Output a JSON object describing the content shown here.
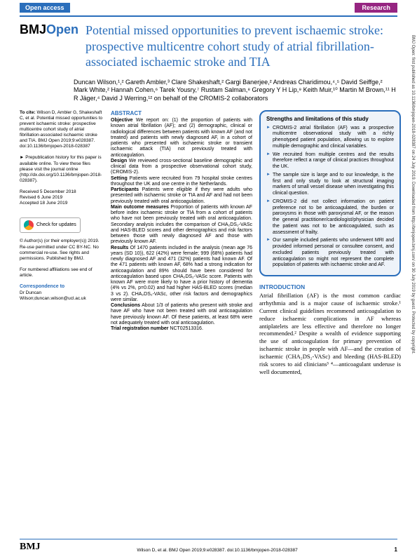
{
  "header": {
    "open_access": "Open access",
    "research": "Research"
  },
  "journal": {
    "name": "BMJ",
    "suffix": "Open"
  },
  "title": "Potential missed opportunities to prevent ischaemic stroke: prospective multicentre cohort study of atrial fibrillation-associated ischaemic stroke and TIA",
  "authors": "Duncan Wilson,¹,² Gareth Ambler,³ Clare Shakeshaft,² Gargi Banerjee,² Andreas Charidimou,⁴,⁵ David Seiffge,² Mark White,² Hannah Cohen,⁶ Tarek Yousry,⁷ Rustam Salman,⁸ Gregory Y H Lip,⁹ Keith Muir,¹⁰ Martin M Brown,¹¹ H R Jäger,⁴ David J Werring,¹² on behalf of the CROMIS-2 collaborators",
  "left": {
    "cite_label": "To cite:",
    "cite_text": " Wilson D, Ambler G, Shakeshaft C, et al. Potential missed opportunities to prevent ischaemic stroke: prospective multicentre cohort study of atrial fibrillation-associated ischaemic stroke and TIA. BMJ Open 2019;9:e028387. doi:10.1136/bmjopen-2018-028387",
    "prepub": "► Prepublication history for this paper is available online. To view these files please visit the journal online (http://dx.doi.org/10.1136/bmjopen-2018-028387).",
    "received": "Received 5 December 2018",
    "revised": "Revised 6 June 2019",
    "accepted": "Accepted 18 June 2019",
    "check": "Check for updates",
    "copyright": "© Author(s) (or their employer(s)) 2019. Re-use permitted under CC BY-NC. No commercial re-use. See rights and permissions. Published by BMJ.",
    "affil": "For numbered affiliations see end of article.",
    "corr_h": "Correspondence to",
    "corr_name": "Dr Duncan Wilson;duncan.wilson@ucl.ac.uk"
  },
  "abstract": {
    "heading": "ABSTRACT",
    "objective_label": "Objective",
    "objective": " We report on: (1) the proportion of patients with known atrial fibrillation (AF); and (2) demographic, clinical or radiological differences between patients with known AF (and not treated) and patients with newly diagnosed AF, in a cohort of patients who presented with ischaemic stroke or transient ischaemic attack (TIA) not previously treated with anticoagulation.",
    "design_label": "Design",
    "design": " We reviewed cross-sectional baseline demographic and clinical data from a prospective observational cohort study, (CROMIS-2).",
    "setting_label": "Setting",
    "setting": " Patients were recruited from 79 hospital stroke centres throughout the UK and one centre in the Netherlands.",
    "participants_label": "Participants",
    "participants": " Patients were eligible if they were adults who presented with ischaemic stroke or TIA and AF and had not been previously treated with oral anticoagulation.",
    "outcome_label": "Main outcome measures",
    "outcome": " Proportion of patients with known AF before index ischaemic stroke or TIA from a cohort of patients who have not been previously treated with oral anticoagulation. Secondary analysis includes the comparison of CHA₂DS₂-VASc and HAS-BLED scores and other demographics and risk factors between those with newly diagnosed AF and those with previously known AF.",
    "results_label": "Results",
    "results": " Of 1470 patients included in the analysis (mean age 76 years (SD 10)), 622 (42%) were female; 999 (68%) patients had newly diagnosed AF and 471 (32%) patients had known AF. Of the 471 patients with known AF, 68% had a strong indication for anticoagulation and 89% should have been considered for anticoagulation based upon CHA₂DS₂-VASc score. Patients with known AF were more likely to have a prior history of dementia (4% vs 2%, p=0.02) and had higher HAS-BLED scores (median 3 vs 2). CHA₂DS₂-VASc, other risk factors and demographics were similar.",
    "conclusions_label": "Conclusions",
    "conclusions": " About 1/3 of patients who present with stroke and have AF who have not been treated with oral anticoagulation have previously known AF. Of these patients, at least 68% were not adequately treated with oral anticoagulation.",
    "trial_label": "Trial registration number",
    "trial": " NCT02513316."
  },
  "box": {
    "title": "Strengths and limitations of this study",
    "items": [
      "CROMIS-2 atrial fibrillation (AF) was a prospective multicentre observational study with a richly phenotyped patient population, allowing us to explore multiple demographic and clinical variables.",
      "We recruited from multiple centres and the results therefore reflect a range of clinical practices throughout the UK.",
      "The sample size is large and to our knowledge, is the first and only study to look at structural imaging markers of small vessel disease when investigating this clinical question.",
      "CROMIS-2 did not collect information on patient preference not to be anticoagulated, the burden or paroxysms in those with paroxysmal AF, or the reason the general practitioner/cardiologist/physician decided the patient was not to be anticoagulated, such as assessment of frailty.",
      "Our sample included patients who underwent MRI and provided informed personal or consultee consent, and excluded patients previously treated with anticoagulation so might not represent the complete population of patients with ischaemic stroke and AF."
    ]
  },
  "intro": {
    "heading": "INTRODUCTION",
    "text": "Atrial fibrillation (AF) is the most common cardiac arrhythmia and is a major cause of ischaemic stroke.¹ Current clinical guidelines recommend anticoagulation to reduce ischaemic complications in AF whereas antiplatelets are less effective and therefore no longer recommended.² Despite a wealth of evidence supporting the use of anticoagulation for primary prevention of ischaemic stroke in people with AF—and the creation of ischaemic (CHA₂DS₂-VASc) and bleeding (HAS-BLED) risk scores to aid clinicians³ ⁴—anticoagulant underuse is well documented,"
  },
  "side": "BMJ Open: first published as 10.1136/bmjopen-2018-028387 on 24 July 2019. Downloaded from http://bmjopen.bmj.com/ on 30 July 2019 by guest. Protected by copyright.",
  "footer": {
    "logo": "BMJ",
    "cite": "Wilson D, et al. BMJ Open 2019;9:e028387. doi:10.1136/bmjopen-2018-028387",
    "page": "1"
  }
}
